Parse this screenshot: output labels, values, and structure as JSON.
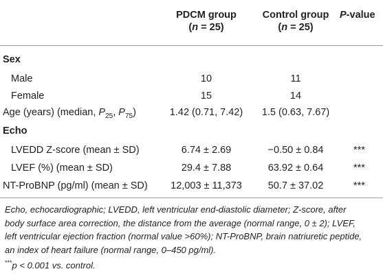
{
  "headers": {
    "col1_line1": "PDCM group",
    "col1_line2_pre": "(",
    "col1_line2_n": "n",
    "col1_line2_post": " = 25)",
    "col2_line1": "Control group",
    "col2_line2_pre": "(",
    "col2_line2_n": "n",
    "col2_line2_post": " = 25)",
    "col3_P": "P",
    "col3_rest": "-value"
  },
  "sections": {
    "sex": "Sex",
    "echo": "Echo"
  },
  "rows": {
    "male": {
      "label": "Male",
      "pdcm": "10",
      "control": "11",
      "p": ""
    },
    "female": {
      "label": "Female",
      "pdcm": "15",
      "control": "14",
      "p": ""
    },
    "age": {
      "label_pre": "Age (years) (median, ",
      "p25": "P",
      "p25_sub": "25",
      "comma": ", ",
      "p75": "P",
      "p75_sub": "75",
      "label_post": ")",
      "pdcm": "1.42 (0.71, 7.42)",
      "control": "1.5 (0.63, 7.67)",
      "p": ""
    },
    "lvedd": {
      "label": "LVEDD Z-score (mean ± SD)",
      "pdcm": "6.74 ± 2.69",
      "control": "−0.50 ± 0.84",
      "p": "***"
    },
    "lvef": {
      "label": "LVEF (%) (mean ± SD)",
      "pdcm": "29.4 ± 7.88",
      "control": "63.92 ± 0.64",
      "p": "***"
    },
    "ntprobnp": {
      "label": "NT-ProBNP (pg/ml) (mean ± SD)",
      "pdcm": "12,003 ± 11,373",
      "control": "50.7 ± 37.02",
      "p": "***"
    }
  },
  "footnote": {
    "line1": "Echo, echocardiographic; LVEDD, left ventricular end-diastolic diameter; Z-score, after",
    "line2": "body surface area correction, the distance from the average (normal range, 0 ± 2); LVEF,",
    "line3": "left ventricular ejection fraction (normal value >60%); NT-ProBNP, brain natriuretic peptide,",
    "line4": "an index of heart failure (normal range, 0–450 pg/ml).",
    "line5_stars": "***",
    "line5_p": "p",
    "line5_rest": " < 0.001 vs. control."
  }
}
